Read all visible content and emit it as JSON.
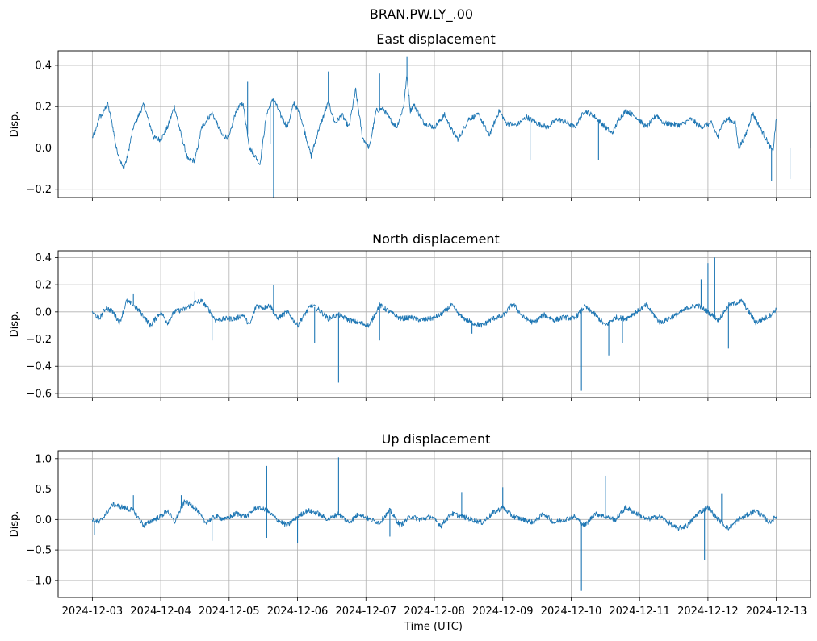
{
  "suptitle": "BRAN.PW.LY_.00",
  "xlabel": "Time (UTC)",
  "x_ticks": [
    "2024-12-03",
    "2024-12-04",
    "2024-12-05",
    "2024-12-06",
    "2024-12-07",
    "2024-12-08",
    "2024-12-09",
    "2024-12-10",
    "2024-12-11",
    "2024-12-12",
    "2024-12-13"
  ],
  "colors": {
    "line": "#1f77b4",
    "grid": "#b0b0b0",
    "axis": "#000000"
  },
  "chart_data": [
    {
      "type": "line",
      "title": "East displacement",
      "ylabel": "Disp.",
      "xlim": [
        -0.5,
        10.5
      ],
      "ylim": [
        -0.24,
        0.47
      ],
      "yticks": [
        0.4,
        0.2,
        0.0,
        -0.2
      ],
      "ytick_labels": [
        "0.4",
        "0.2",
        "0.0",
        "−0.2"
      ],
      "series": [
        {
          "name": "East",
          "x": [
            0.0,
            0.05,
            0.1,
            0.15,
            0.22,
            0.3,
            0.35,
            0.45,
            0.5,
            0.6,
            0.75,
            0.9,
            1.0,
            1.1,
            1.2,
            1.3,
            1.4,
            1.5,
            1.6,
            1.75,
            1.9,
            2.0,
            2.1,
            2.2,
            2.3,
            2.4,
            2.45,
            2.55,
            2.65,
            2.75,
            2.85,
            2.95,
            3.05,
            3.15,
            3.2,
            3.3,
            3.45,
            3.55,
            3.65,
            3.75,
            3.85,
            3.95,
            4.05,
            4.15,
            4.25,
            4.35,
            4.45,
            4.55,
            4.6,
            4.65,
            4.7,
            4.85,
            5.0,
            5.15,
            5.25,
            5.35,
            5.5,
            5.65,
            5.8,
            5.95,
            6.05,
            6.2,
            6.35,
            6.5,
            6.65,
            6.8,
            6.95,
            7.05,
            7.2,
            7.35,
            7.5,
            7.6,
            7.7,
            7.8,
            7.95,
            8.1,
            8.25,
            8.35,
            8.6,
            8.75,
            8.9,
            9.05,
            9.15,
            9.2,
            9.3,
            9.4,
            9.45,
            9.55,
            9.65,
            9.95,
            10.0
          ],
          "values": [
            0.05,
            0.08,
            0.15,
            0.16,
            0.22,
            0.1,
            0.0,
            -0.1,
            -0.06,
            0.1,
            0.21,
            0.05,
            0.04,
            0.1,
            0.2,
            0.06,
            -0.06,
            -0.06,
            0.1,
            0.17,
            0.06,
            0.05,
            0.18,
            0.22,
            0.0,
            -0.05,
            -0.08,
            0.17,
            0.24,
            0.16,
            0.1,
            0.22,
            0.15,
            0.02,
            -0.04,
            0.08,
            0.22,
            0.12,
            0.16,
            0.1,
            0.28,
            0.05,
            0.0,
            0.18,
            0.19,
            0.14,
            0.1,
            0.2,
            0.35,
            0.18,
            0.21,
            0.12,
            0.1,
            0.16,
            0.09,
            0.04,
            0.14,
            0.16,
            0.06,
            0.18,
            0.12,
            0.11,
            0.15,
            0.12,
            0.1,
            0.14,
            0.12,
            0.1,
            0.18,
            0.15,
            0.1,
            0.07,
            0.14,
            0.18,
            0.15,
            0.1,
            0.16,
            0.12,
            0.11,
            0.14,
            0.1,
            0.12,
            0.05,
            0.12,
            0.14,
            0.12,
            0.0,
            0.06,
            0.17,
            -0.02,
            0.14
          ]
        }
      ],
      "spikes": [
        {
          "x": 2.6,
          "y": 0.02
        },
        {
          "x": 2.27,
          "y": 0.32
        },
        {
          "x": 2.65,
          "y": -0.24
        },
        {
          "x": 3.45,
          "y": 0.37
        },
        {
          "x": 4.2,
          "y": 0.36
        },
        {
          "x": 4.6,
          "y": 0.44
        },
        {
          "x": 6.4,
          "y": -0.06
        },
        {
          "x": 7.4,
          "y": -0.06
        },
        {
          "x": 9.93,
          "y": -0.16
        },
        {
          "x": 10.2,
          "y": -0.15
        },
        {
          "x": 10.5,
          "y": 0.22
        }
      ]
    },
    {
      "type": "line",
      "title": "North displacement",
      "ylabel": "Disp.",
      "xlim": [
        -0.5,
        10.5
      ],
      "ylim": [
        -0.63,
        0.45
      ],
      "yticks": [
        0.4,
        0.2,
        0.0,
        -0.2,
        -0.4,
        -0.6
      ],
      "ytick_labels": [
        "0.4",
        "0.2",
        "0.0",
        "−0.2",
        "−0.4",
        "−0.6"
      ],
      "series": [
        {
          "name": "North",
          "x": [
            0.0,
            0.1,
            0.2,
            0.3,
            0.4,
            0.5,
            0.6,
            0.7,
            0.85,
            1.0,
            1.1,
            1.2,
            1.35,
            1.5,
            1.6,
            1.7,
            1.8,
            1.95,
            2.1,
            2.2,
            2.3,
            2.4,
            2.5,
            2.6,
            2.7,
            2.85,
            3.0,
            3.1,
            3.2,
            3.3,
            3.45,
            3.6,
            3.75,
            3.9,
            4.05,
            4.2,
            4.35,
            4.5,
            4.65,
            4.8,
            4.95,
            5.1,
            5.25,
            5.4,
            5.55,
            5.7,
            5.85,
            6.0,
            6.15,
            6.3,
            6.45,
            6.6,
            6.75,
            6.9,
            7.05,
            7.2,
            7.35,
            7.5,
            7.65,
            7.8,
            7.95,
            8.1,
            8.3,
            8.55,
            8.7,
            8.85,
            9.0,
            9.15,
            9.3,
            9.5,
            9.7,
            9.9,
            10.0
          ],
          "values": [
            0.0,
            -0.05,
            0.03,
            0.0,
            -0.08,
            0.08,
            0.05,
            0.0,
            -0.1,
            0.0,
            -0.08,
            0.0,
            0.02,
            0.07,
            0.08,
            0.02,
            -0.06,
            -0.05,
            -0.05,
            -0.02,
            -0.1,
            0.05,
            0.03,
            0.05,
            -0.05,
            0.0,
            -0.1,
            -0.02,
            0.05,
            0.02,
            -0.05,
            -0.02,
            -0.06,
            -0.08,
            -0.1,
            0.05,
            0.0,
            -0.05,
            -0.04,
            -0.06,
            -0.05,
            -0.02,
            0.05,
            -0.04,
            -0.08,
            -0.1,
            -0.05,
            -0.03,
            0.06,
            -0.04,
            -0.08,
            -0.02,
            -0.06,
            -0.04,
            -0.05,
            0.04,
            -0.02,
            -0.1,
            -0.04,
            -0.05,
            0.0,
            0.05,
            -0.08,
            -0.02,
            0.03,
            0.05,
            0.0,
            -0.06,
            0.05,
            0.08,
            -0.08,
            -0.03,
            0.02
          ]
        }
      ],
      "spikes": [
        {
          "x": 0.6,
          "y": 0.13
        },
        {
          "x": 1.5,
          "y": 0.15
        },
        {
          "x": 1.75,
          "y": -0.21
        },
        {
          "x": 2.65,
          "y": 0.2
        },
        {
          "x": 3.25,
          "y": -0.23
        },
        {
          "x": 3.6,
          "y": -0.52
        },
        {
          "x": 4.2,
          "y": -0.21
        },
        {
          "x": 5.55,
          "y": -0.16
        },
        {
          "x": 7.15,
          "y": -0.58
        },
        {
          "x": 7.55,
          "y": -0.32
        },
        {
          "x": 7.75,
          "y": -0.23
        },
        {
          "x": 8.9,
          "y": 0.24
        },
        {
          "x": 9.0,
          "y": 0.36
        },
        {
          "x": 9.1,
          "y": 0.4
        },
        {
          "x": 9.3,
          "y": -0.27
        }
      ]
    },
    {
      "type": "line",
      "title": "Up displacement",
      "ylabel": "Disp.",
      "xlim": [
        -0.5,
        10.5
      ],
      "ylim": [
        -1.28,
        1.13
      ],
      "yticks": [
        1.0,
        0.5,
        0.0,
        -0.5,
        -1.0
      ],
      "ytick_labels": [
        "1.0",
        "0.5",
        "0.0",
        "−0.5",
        "−1.0"
      ],
      "series": [
        {
          "name": "Up",
          "x": [
            0.0,
            0.1,
            0.2,
            0.3,
            0.45,
            0.6,
            0.75,
            0.9,
            1.0,
            1.1,
            1.2,
            1.35,
            1.5,
            1.65,
            1.8,
            1.95,
            2.1,
            2.25,
            2.4,
            2.55,
            2.7,
            2.85,
            3.0,
            3.15,
            3.3,
            3.45,
            3.6,
            3.75,
            3.9,
            4.05,
            4.2,
            4.35,
            4.5,
            4.65,
            4.8,
            4.95,
            5.1,
            5.25,
            5.4,
            5.55,
            5.7,
            5.85,
            6.0,
            6.15,
            6.3,
            6.45,
            6.6,
            6.75,
            6.9,
            7.05,
            7.2,
            7.35,
            7.5,
            7.65,
            7.8,
            7.95,
            8.1,
            8.3,
            8.55,
            8.7,
            8.85,
            9.0,
            9.15,
            9.3,
            9.45,
            9.7,
            9.9,
            10.0
          ],
          "values": [
            0.0,
            -0.05,
            0.1,
            0.25,
            0.2,
            0.15,
            -0.1,
            0.0,
            0.05,
            0.15,
            -0.05,
            0.3,
            0.2,
            -0.05,
            0.05,
            0.0,
            0.1,
            0.05,
            0.2,
            0.15,
            0.0,
            -0.1,
            0.05,
            0.15,
            0.1,
            0.0,
            0.1,
            -0.05,
            0.1,
            0.0,
            -0.05,
            0.15,
            -0.1,
            0.05,
            0.0,
            0.05,
            -0.1,
            0.1,
            0.05,
            0.0,
            -0.05,
            0.1,
            0.2,
            0.05,
            0.0,
            -0.05,
            0.1,
            -0.05,
            0.0,
            0.05,
            -0.1,
            0.1,
            0.05,
            0.0,
            0.2,
            0.1,
            0.0,
            0.05,
            -0.15,
            -0.1,
            0.1,
            0.2,
            0.0,
            -0.15,
            0.0,
            0.15,
            -0.05,
            0.05
          ]
        }
      ],
      "spikes": [
        {
          "x": 0.03,
          "y": -0.25
        },
        {
          "x": 0.6,
          "y": 0.4
        },
        {
          "x": 1.3,
          "y": 0.4
        },
        {
          "x": 1.75,
          "y": -0.35
        },
        {
          "x": 2.55,
          "y": 0.88
        },
        {
          "x": 2.55,
          "y": -0.3
        },
        {
          "x": 3.0,
          "y": -0.38
        },
        {
          "x": 3.6,
          "y": 1.02
        },
        {
          "x": 4.35,
          "y": -0.28
        },
        {
          "x": 5.4,
          "y": 0.45
        },
        {
          "x": 6.0,
          "y": 0.53
        },
        {
          "x": 7.15,
          "y": -1.17
        },
        {
          "x": 7.5,
          "y": 0.72
        },
        {
          "x": 8.95,
          "y": -0.66
        },
        {
          "x": 9.2,
          "y": 0.42
        }
      ]
    }
  ]
}
